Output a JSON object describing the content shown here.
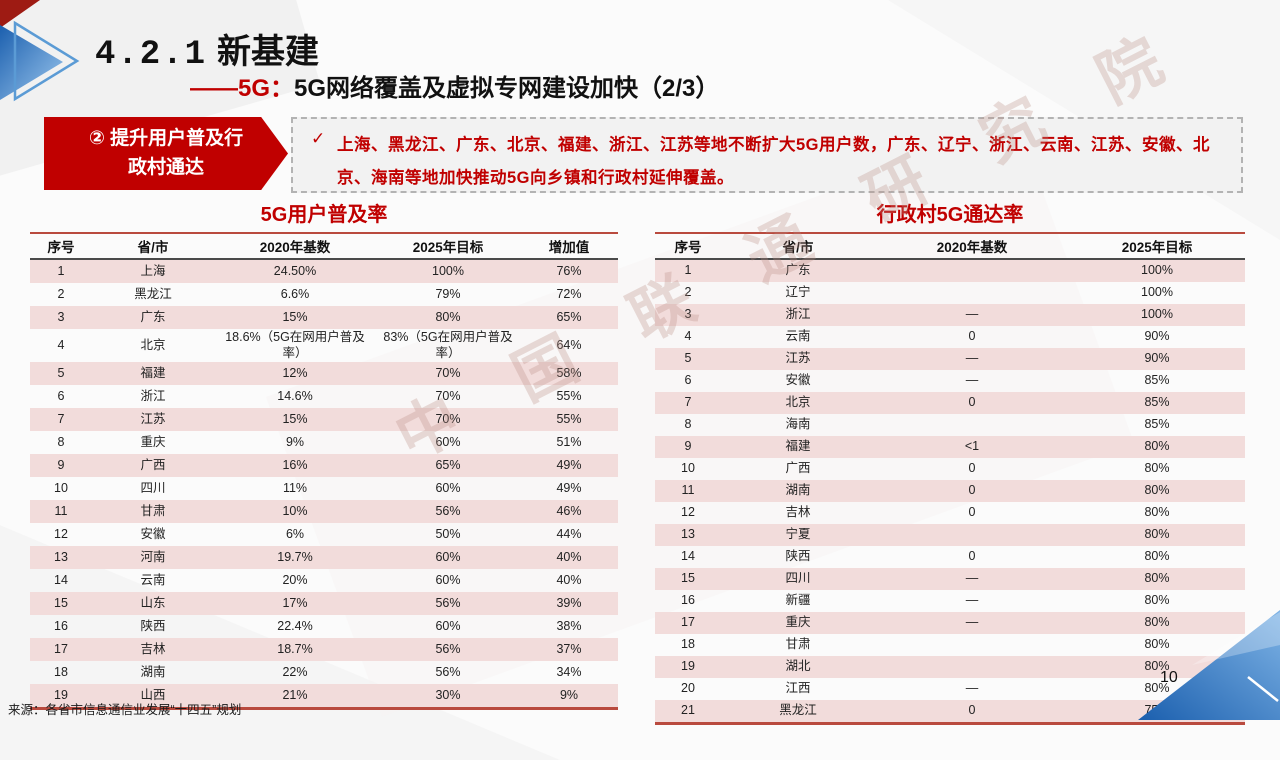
{
  "header": {
    "title_number": "4.2.1",
    "title_text": "新基建",
    "subtitle_prefix": "——5G：",
    "subtitle_text": "5G网络覆盖及虚拟专网建设加快（2/3）"
  },
  "badge": {
    "line1": "② 提升用户普及行",
    "line2": "政村通达"
  },
  "bullet": {
    "check": "✓",
    "text": "上海、黑龙江、广东、北京、福建、浙江、江苏等地不断扩大5G用户数，广东、辽宁、浙江、云南、江苏、安徽、北京、海南等地加快推动5G向乡镇和行政村延伸覆盖。"
  },
  "tables": {
    "left": {
      "title": "5G用户普及率",
      "headers": [
        "序号",
        "省/市",
        "2020年基数",
        "2025年目标",
        "增加值"
      ],
      "rows": [
        [
          "1",
          "上海",
          "24.50%",
          "100%",
          "76%"
        ],
        [
          "2",
          "黑龙江",
          "6.6%",
          "79%",
          "72%"
        ],
        [
          "3",
          "广东",
          "15%",
          "80%",
          "65%"
        ],
        [
          "4",
          "北京",
          "18.6%（5G在网用户普及率）",
          "83%（5G在网用户普及率）",
          "64%"
        ],
        [
          "5",
          "福建",
          "12%",
          "70%",
          "58%"
        ],
        [
          "6",
          "浙江",
          "14.6%",
          "70%",
          "55%"
        ],
        [
          "7",
          "江苏",
          "15%",
          "70%",
          "55%"
        ],
        [
          "8",
          "重庆",
          "9%",
          "60%",
          "51%"
        ],
        [
          "9",
          "广西",
          "16%",
          "65%",
          "49%"
        ],
        [
          "10",
          "四川",
          "11%",
          "60%",
          "49%"
        ],
        [
          "11",
          "甘肃",
          "10%",
          "56%",
          "46%"
        ],
        [
          "12",
          "安徽",
          "6%",
          "50%",
          "44%"
        ],
        [
          "13",
          "河南",
          "19.7%",
          "60%",
          "40%"
        ],
        [
          "14",
          "云南",
          "20%",
          "60%",
          "40%"
        ],
        [
          "15",
          "山东",
          "17%",
          "56%",
          "39%"
        ],
        [
          "16",
          "陕西",
          "22.4%",
          "60%",
          "38%"
        ],
        [
          "17",
          "吉林",
          "18.7%",
          "56%",
          "37%"
        ],
        [
          "18",
          "湖南",
          "22%",
          "56%",
          "34%"
        ],
        [
          "19",
          "山西",
          "21%",
          "30%",
          "9%"
        ]
      ]
    },
    "right": {
      "title": "行政村5G通达率",
      "headers": [
        "序号",
        "省/市",
        "2020年基数",
        "2025年目标"
      ],
      "rows": [
        [
          "1",
          "广东",
          "",
          "100%"
        ],
        [
          "2",
          "辽宁",
          "",
          "100%"
        ],
        [
          "3",
          "浙江",
          "—",
          "100%"
        ],
        [
          "4",
          "云南",
          "0",
          "90%"
        ],
        [
          "5",
          "江苏",
          "—",
          "90%"
        ],
        [
          "6",
          "安徽",
          "—",
          "85%"
        ],
        [
          "7",
          "北京",
          "0",
          "85%"
        ],
        [
          "8",
          "海南",
          "",
          "85%"
        ],
        [
          "9",
          "福建",
          "<1",
          "80%"
        ],
        [
          "10",
          "广西",
          "0",
          "80%"
        ],
        [
          "11",
          "湖南",
          "0",
          "80%"
        ],
        [
          "12",
          "吉林",
          "0",
          "80%"
        ],
        [
          "13",
          "宁夏",
          "",
          "80%"
        ],
        [
          "14",
          "陕西",
          "0",
          "80%"
        ],
        [
          "15",
          "四川",
          "—",
          "80%"
        ],
        [
          "16",
          "新疆",
          "—",
          "80%"
        ],
        [
          "17",
          "重庆",
          "—",
          "80%"
        ],
        [
          "18",
          "甘肃",
          "",
          "80%"
        ],
        [
          "19",
          "湖北",
          "",
          "80%"
        ],
        [
          "20",
          "江西",
          "—",
          "80%"
        ],
        [
          "21",
          "黑龙江",
          "0",
          "75%"
        ]
      ]
    }
  },
  "watermark": {
    "text": "中 国 联 通 研 究 院"
  },
  "footer": {
    "source": "来源：各省市信息通信业发展“十四五”规划",
    "page_number": "10"
  },
  "colors": {
    "accent_red": "#C00000",
    "table_border_red": "#B94A3E",
    "row_stripe_pink": "#F2DCDB",
    "decoration_blue": "#2E75B6",
    "decoration_blue_light": "#8FC0EC"
  }
}
